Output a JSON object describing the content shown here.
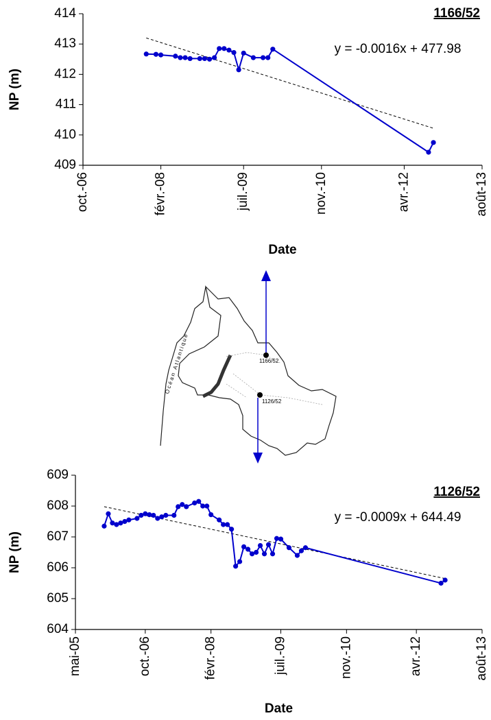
{
  "chart_data": [
    {
      "type": "line",
      "title": "1166/52",
      "xlabel": "Date",
      "ylabel": "NP (m)",
      "color": "#0000cc",
      "x": [
        "2007-11",
        "2008-01",
        "2008-02",
        "2008-05",
        "2008-06",
        "2008-07",
        "2008-08",
        "2008-10",
        "2008-11",
        "2008-12",
        "2009-01",
        "2009-02",
        "2009-03",
        "2009-04",
        "2009-05",
        "2009-06",
        "2009-07",
        "2009-09",
        "2009-11",
        "2009-12",
        "2010-01",
        "2012-09",
        "2012-10"
      ],
      "values": [
        412.67,
        412.66,
        412.64,
        412.6,
        412.55,
        412.55,
        412.52,
        412.52,
        412.52,
        412.5,
        412.55,
        412.85,
        412.85,
        412.8,
        412.72,
        412.15,
        412.7,
        412.55,
        412.55,
        412.55,
        412.83,
        409.43,
        409.75
      ],
      "xlim": [
        "2006-10",
        "2013-08"
      ],
      "xticks": [
        {
          "value": "2006-10",
          "label": "oct.-06"
        },
        {
          "value": "2008-02",
          "label": "févr.-08"
        },
        {
          "value": "2009-07",
          "label": "juil.-09"
        },
        {
          "value": "2010-11",
          "label": "nov.-10"
        },
        {
          "value": "2012-04",
          "label": "avr.-12"
        },
        {
          "value": "2013-08",
          "label": "août-13"
        }
      ],
      "ylim": [
        409,
        414
      ],
      "yticks": [
        409,
        410,
        411,
        412,
        413,
        414
      ],
      "trendline": {
        "label": "y = -0.0016x + 477.98",
        "x": [
          "2007-11",
          "2012-10"
        ],
        "values": [
          413.2,
          410.22
        ]
      }
    },
    {
      "type": "line",
      "title": "1126/52",
      "xlabel": "Date",
      "ylabel": "NP (m)",
      "color": "#0000cc",
      "x": [
        "2005-12",
        "2006-01",
        "2006-02",
        "2006-03",
        "2006-04",
        "2006-05",
        "2006-06",
        "2006-08",
        "2006-09",
        "2006-10",
        "2006-11",
        "2006-12",
        "2007-01",
        "2007-02",
        "2007-03",
        "2007-05",
        "2007-06",
        "2007-07",
        "2007-08",
        "2007-10",
        "2007-11",
        "2007-12",
        "2008-01",
        "2008-02",
        "2008-04",
        "2008-05",
        "2008-06",
        "2008-07",
        "2008-08",
        "2008-09",
        "2008-10",
        "2008-11",
        "2008-12",
        "2009-01",
        "2009-02",
        "2009-03",
        "2009-04",
        "2009-05",
        "2009-06",
        "2009-07",
        "2009-09",
        "2009-11",
        "2009-12",
        "2010-01",
        "2012-10",
        "2012-11"
      ],
      "values": [
        607.35,
        607.75,
        607.45,
        607.4,
        607.45,
        607.5,
        607.55,
        607.6,
        607.7,
        607.75,
        607.72,
        607.7,
        607.6,
        607.65,
        607.7,
        607.7,
        607.98,
        608.05,
        607.98,
        608.1,
        608.15,
        608.0,
        608.0,
        607.72,
        607.55,
        607.4,
        607.4,
        607.25,
        606.05,
        606.2,
        606.68,
        606.6,
        606.45,
        606.5,
        606.72,
        606.45,
        606.75,
        606.45,
        606.95,
        606.93,
        606.65,
        606.4,
        606.55,
        606.65,
        605.5,
        605.6
      ],
      "xlim": [
        "2005-05",
        "2013-08"
      ],
      "xticks": [
        {
          "value": "2005-05",
          "label": "mai-05"
        },
        {
          "value": "2006-10",
          "label": "oct.-06"
        },
        {
          "value": "2008-02",
          "label": "févr.-08"
        },
        {
          "value": "2009-07",
          "label": "juil.-09"
        },
        {
          "value": "2010-11",
          "label": "nov.-10"
        },
        {
          "value": "2012-04",
          "label": "avr.-12"
        },
        {
          "value": "2013-08",
          "label": "août-13"
        }
      ],
      "ylim": [
        604,
        609
      ],
      "yticks": [
        604,
        605,
        606,
        607,
        608,
        609
      ],
      "trendline": {
        "label": "y = -0.0009x + 644.49",
        "x": [
          "2005-12",
          "2012-11"
        ],
        "values": [
          607.98,
          605.65
        ]
      }
    }
  ],
  "map": {
    "ocean_label": "Océan Atlantique",
    "wells": [
      "1166/52",
      "1126/52"
    ]
  }
}
